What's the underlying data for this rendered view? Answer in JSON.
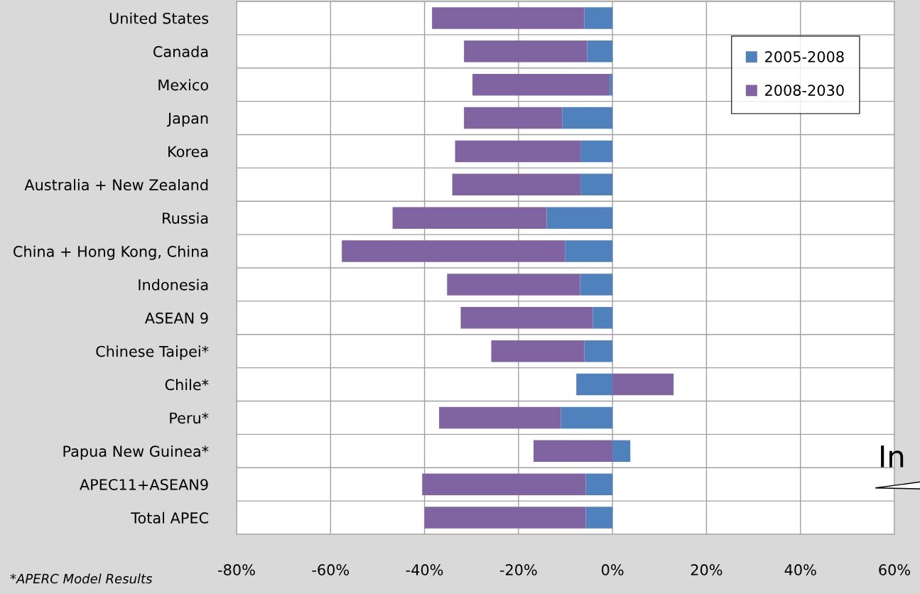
{
  "chart_data": {
    "type": "bar",
    "orientation": "horizontal",
    "stacked": true,
    "categories": [
      "United States",
      "Canada",
      "Mexico",
      "Japan",
      "Korea",
      "Australia + New Zealand",
      "Russia",
      "China + Hong Kong, China",
      "Indonesia",
      "ASEAN 9",
      "Chinese Taipei*",
      "Chile*",
      "Peru*",
      "Papua New Guinea*",
      "APEC11+ASEAN9",
      "Total APEC"
    ],
    "series": [
      {
        "name": "2005-2008",
        "color": "#4f81bd",
        "values": [
          -6.0,
          -5.4,
          -0.6,
          -10.7,
          -6.8,
          -6.8,
          -14.0,
          -10.1,
          -6.9,
          -4.2,
          -6.0,
          -7.7,
          -11.0,
          3.8,
          -5.7,
          -5.7
        ]
      },
      {
        "name": "2008-2030",
        "color": "#8064a2",
        "values": [
          -32.4,
          -26.2,
          -29.2,
          -20.9,
          -26.7,
          -27.3,
          -32.8,
          -47.5,
          -28.3,
          -28.1,
          -19.8,
          13.0,
          -25.9,
          -16.8,
          -34.8,
          -34.3
        ]
      }
    ],
    "xlim": [
      -80,
      60
    ],
    "xticks": [
      {
        "value": -80,
        "label": "-80%"
      },
      {
        "value": -60,
        "label": "-60%"
      },
      {
        "value": -40,
        "label": "-40%"
      },
      {
        "value": -20,
        "label": "-20%"
      },
      {
        "value": 0,
        "label": "0%"
      },
      {
        "value": 20,
        "label": "20%"
      },
      {
        "value": 40,
        "label": "40%"
      },
      {
        "value": 60,
        "label": "60%"
      }
    ],
    "grid": true,
    "legend": "top right",
    "annotations": [
      "*APERC Model Results",
      "In"
    ]
  }
}
